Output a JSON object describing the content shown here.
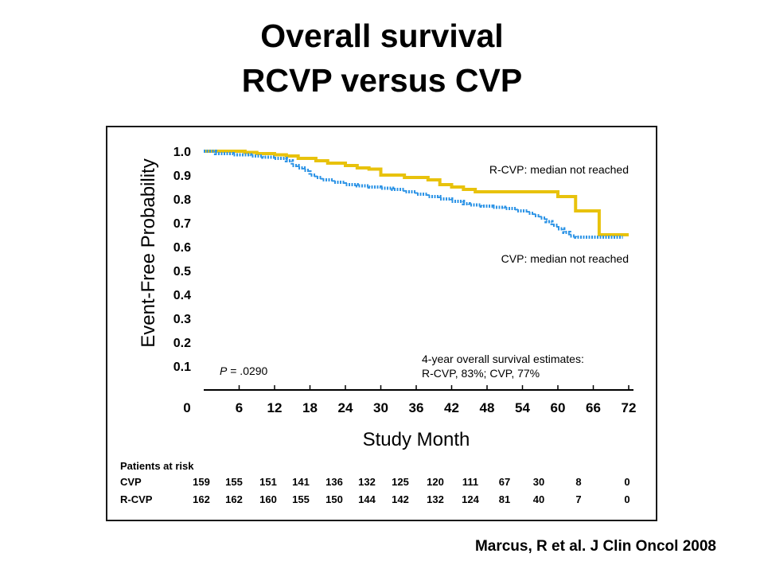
{
  "slide": {
    "title_line1": "Overall survival",
    "title_line2": "RCVP versus CVP",
    "citation": "Marcus, R et al. J Clin Oncol 2008"
  },
  "chart_data": {
    "type": "line",
    "ylabel": "Event-Free Probability",
    "xlabel": "Study Month",
    "xlim": [
      0,
      72
    ],
    "ylim": [
      0,
      1.0
    ],
    "x_ticks": [
      "0",
      "6",
      "12",
      "18",
      "24",
      "30",
      "36",
      "42",
      "48",
      "54",
      "60",
      "66",
      "72"
    ],
    "y_ticks": [
      "0.1",
      "0.2",
      "0.3",
      "0.4",
      "0.5",
      "0.6",
      "0.7",
      "0.8",
      "0.9",
      "1.0"
    ],
    "colors": {
      "R-CVP": "#e8c20c",
      "CVP": "#2e94e6"
    },
    "series": [
      {
        "name": "R-CVP",
        "style": "solid-step",
        "x": [
          0,
          7,
          9,
          12,
          14,
          16,
          19,
          21,
          24,
          26,
          28,
          30,
          34,
          38,
          40,
          42,
          44,
          46,
          49,
          52,
          55,
          60,
          63,
          67,
          72
        ],
        "y": [
          1.0,
          0.995,
          0.99,
          0.985,
          0.98,
          0.97,
          0.96,
          0.95,
          0.94,
          0.93,
          0.925,
          0.9,
          0.89,
          0.88,
          0.86,
          0.85,
          0.84,
          0.83,
          0.83,
          0.83,
          0.83,
          0.81,
          0.75,
          0.65,
          0.65
        ]
      },
      {
        "name": "CVP",
        "style": "dotted-step",
        "x": [
          0,
          2,
          5,
          8,
          10,
          12,
          14,
          15,
          16,
          17,
          18,
          19,
          20,
          22,
          24,
          26,
          28,
          30,
          32,
          34,
          36,
          38,
          40,
          42,
          44,
          45,
          47,
          49,
          51,
          53,
          55,
          56,
          57,
          58,
          59,
          60,
          61,
          62,
          63,
          66,
          68,
          71
        ],
        "y": [
          1.0,
          0.99,
          0.985,
          0.98,
          0.975,
          0.97,
          0.96,
          0.94,
          0.93,
          0.92,
          0.9,
          0.89,
          0.88,
          0.87,
          0.86,
          0.855,
          0.85,
          0.845,
          0.84,
          0.83,
          0.82,
          0.81,
          0.8,
          0.79,
          0.78,
          0.775,
          0.77,
          0.765,
          0.76,
          0.75,
          0.74,
          0.73,
          0.72,
          0.705,
          0.69,
          0.675,
          0.66,
          0.645,
          0.64,
          0.64,
          0.64,
          0.64
        ]
      }
    ],
    "annotations": {
      "rcvp_median": "R-CVP: median not reached",
      "cvp_median": "CVP: median not reached",
      "p_label": "P",
      "p_value": " = .0290",
      "estimates_line1": "4-year overall survival estimates:",
      "estimates_line2": "R-CVP, 83%; CVP, 77%"
    },
    "risk_table": {
      "header": "Patients at risk",
      "rows": [
        {
          "label": "CVP",
          "values": [
            "159",
            "155",
            "151",
            "141",
            "136",
            "132",
            "125",
            "120",
            "111",
            "67",
            "30",
            "8",
            "0"
          ]
        },
        {
          "label": "R-CVP",
          "values": [
            "162",
            "162",
            "160",
            "155",
            "150",
            "144",
            "142",
            "132",
            "124",
            "81",
            "40",
            "7",
            "0"
          ]
        }
      ]
    }
  }
}
